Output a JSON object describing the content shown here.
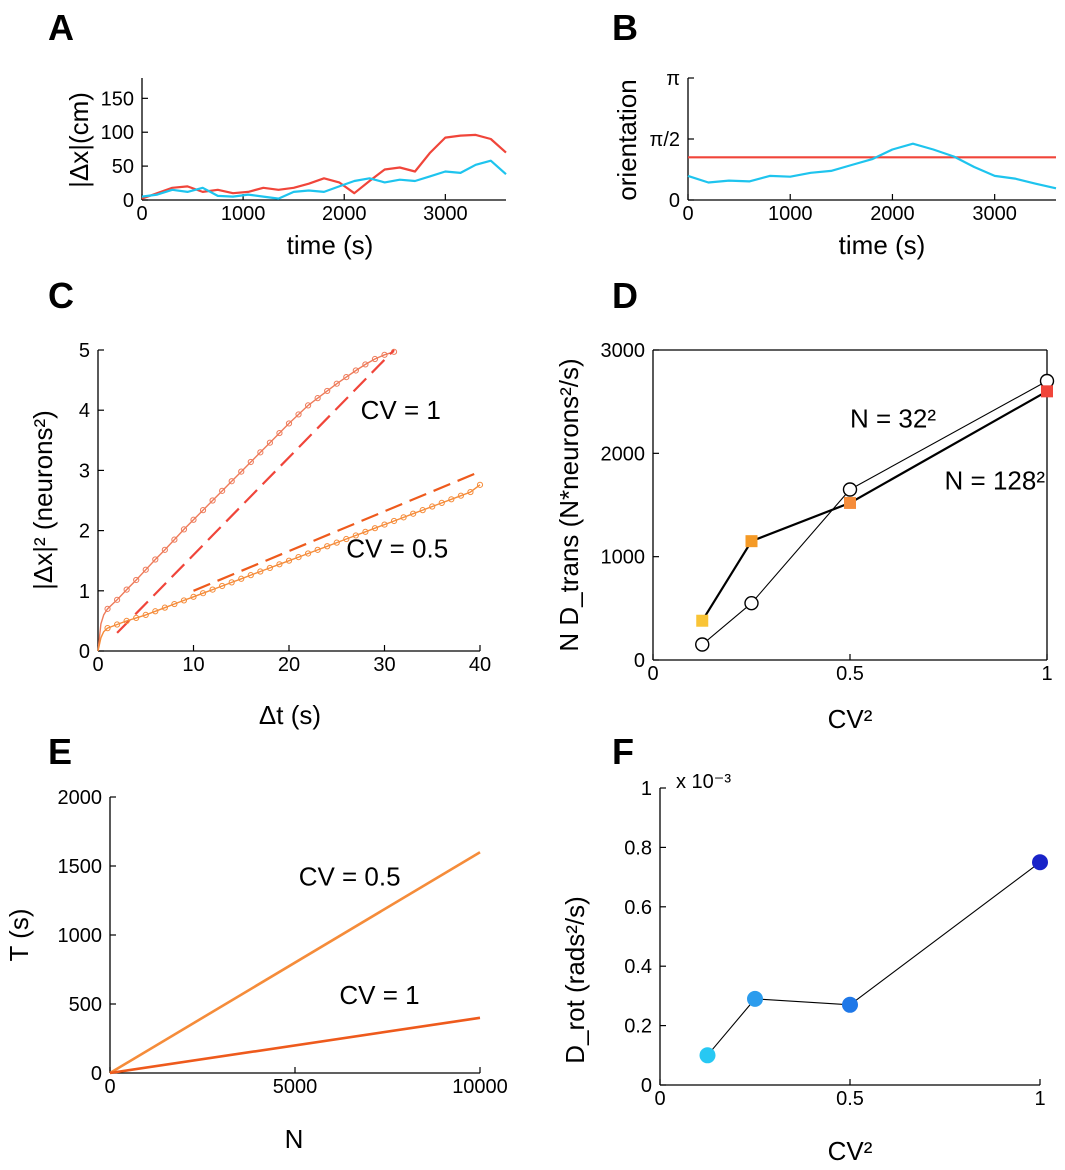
{
  "colors": {
    "red": "#f0453a",
    "cyan": "#1ec4ee",
    "orange": "#f58c3a",
    "orange_dark": "#ee5a1c",
    "salmon": "#ee7b5a",
    "yellow": "#f9c436",
    "amber": "#f59a26",
    "red_sq": "#f0453a",
    "blue_light": "#27c8f3",
    "blue_mid": "#2c9ced",
    "blue": "#1f78e8",
    "blue_dark": "#1923c8"
  },
  "chart_data": [
    {
      "id": "A",
      "panel_label": "A",
      "type": "line",
      "xlabel": "time (s)",
      "ylabel": "|Δx|(cm)",
      "xlim": [
        0,
        3600
      ],
      "ylim": [
        0,
        180
      ],
      "xticks": [
        0,
        1000,
        2000,
        3000
      ],
      "xtick_labels": [
        "0",
        "1000",
        "2000",
        "3000"
      ],
      "yticks": [
        0,
        50,
        100,
        150
      ],
      "ytick_labels": [
        "0",
        "50",
        "100",
        "150"
      ],
      "series": [
        {
          "name": "red trajectory",
          "color_key": "red",
          "x": [
            0,
            150,
            300,
            450,
            600,
            750,
            900,
            1050,
            1200,
            1350,
            1500,
            1650,
            1800,
            1950,
            2100,
            2250,
            2400,
            2550,
            2700,
            2850,
            3000,
            3150,
            3300,
            3450,
            3600
          ],
          "y": [
            2,
            10,
            18,
            20,
            12,
            15,
            10,
            12,
            18,
            15,
            18,
            24,
            32,
            26,
            10,
            28,
            45,
            48,
            42,
            70,
            92,
            95,
            96,
            90,
            70
          ]
        },
        {
          "name": "cyan trajectory",
          "color_key": "cyan",
          "x": [
            0,
            150,
            300,
            450,
            600,
            750,
            900,
            1050,
            1200,
            1350,
            1500,
            1650,
            1800,
            1950,
            2100,
            2250,
            2400,
            2550,
            2700,
            2850,
            3000,
            3150,
            3300,
            3450,
            3600
          ],
          "y": [
            5,
            8,
            15,
            12,
            18,
            6,
            5,
            8,
            5,
            2,
            12,
            14,
            12,
            20,
            28,
            32,
            26,
            30,
            28,
            35,
            42,
            40,
            52,
            58,
            38
          ]
        }
      ]
    },
    {
      "id": "B",
      "panel_label": "B",
      "type": "line",
      "xlabel": "time (s)",
      "ylabel": "orientation",
      "xlim": [
        0,
        3600
      ],
      "ylim": [
        0,
        3.1416
      ],
      "xticks": [
        0,
        1000,
        2000,
        3000
      ],
      "xtick_labels": [
        "0",
        "1000",
        "2000",
        "3000"
      ],
      "yticks": [
        0,
        1.5708,
        3.1416
      ],
      "ytick_labels": [
        "0",
        "π/2",
        "π"
      ],
      "series": [
        {
          "name": "constant orientation",
          "color_key": "red",
          "x": [
            0,
            3600
          ],
          "y": [
            1.1,
            1.1
          ]
        },
        {
          "name": "cyan orientation",
          "color_key": "cyan",
          "x": [
            0,
            200,
            400,
            600,
            800,
            1000,
            1200,
            1400,
            1600,
            1800,
            2000,
            2200,
            2400,
            2600,
            2800,
            3000,
            3200,
            3400,
            3600
          ],
          "y": [
            0.62,
            0.45,
            0.5,
            0.48,
            0.62,
            0.6,
            0.7,
            0.75,
            0.9,
            1.05,
            1.3,
            1.45,
            1.3,
            1.12,
            0.85,
            0.62,
            0.55,
            0.42,
            0.3
          ]
        }
      ]
    },
    {
      "id": "C",
      "panel_label": "C",
      "type": "line",
      "xlabel": "Δt (s)",
      "ylabel": "|Δx|² (neurons²)",
      "xlim": [
        0,
        40
      ],
      "ylim": [
        0,
        5
      ],
      "xticks": [
        0,
        10,
        20,
        30,
        40
      ],
      "xtick_labels": [
        "0",
        "10",
        "20",
        "30",
        "40"
      ],
      "yticks": [
        0,
        1,
        2,
        3,
        4,
        5
      ],
      "ytick_labels": [
        "0",
        "1",
        "2",
        "3",
        "4",
        "5"
      ],
      "annotations": [
        {
          "text": "CV = 1",
          "x": 27.5,
          "y": 3.85
        },
        {
          "text": "CV = 0.5",
          "x": 26,
          "y": 1.55
        }
      ],
      "series": [
        {
          "name": "CV = 1 data",
          "color_key": "salmon",
          "markers": "open-circle",
          "x": [
            0,
            0.3,
            0.6,
            1,
            2,
            3,
            4,
            5,
            6,
            7,
            8,
            9,
            10,
            11,
            12,
            13,
            14,
            15,
            16,
            17,
            18,
            19,
            20,
            21,
            22,
            23,
            24,
            25,
            26,
            27,
            28,
            29,
            30,
            31
          ],
          "y": [
            0,
            0.45,
            0.6,
            0.7,
            0.85,
            1.02,
            1.18,
            1.35,
            1.52,
            1.68,
            1.85,
            2.02,
            2.18,
            2.34,
            2.5,
            2.66,
            2.82,
            2.98,
            3.14,
            3.3,
            3.46,
            3.62,
            3.78,
            3.93,
            4.08,
            4.2,
            4.32,
            4.44,
            4.55,
            4.66,
            4.76,
            4.85,
            4.92,
            4.97
          ]
        },
        {
          "name": "CV = 1 fit",
          "color_key": "red",
          "dashed": true,
          "x": [
            2,
            31
          ],
          "y": [
            0.3,
            5.0
          ]
        },
        {
          "name": "CV = 0.5 data",
          "color_key": "orange",
          "markers": "open-circle",
          "x": [
            0,
            0.3,
            0.6,
            1,
            2,
            3,
            4,
            5,
            6,
            7,
            8,
            9,
            10,
            11,
            12,
            13,
            14,
            15,
            16,
            17,
            18,
            19,
            20,
            21,
            22,
            23,
            24,
            25,
            26,
            27,
            28,
            29,
            30,
            31,
            32,
            33,
            34,
            35,
            36,
            37,
            38,
            39,
            40
          ],
          "y": [
            0,
            0.22,
            0.32,
            0.38,
            0.44,
            0.5,
            0.55,
            0.6,
            0.66,
            0.72,
            0.78,
            0.84,
            0.9,
            0.96,
            1.02,
            1.08,
            1.14,
            1.2,
            1.26,
            1.32,
            1.38,
            1.44,
            1.5,
            1.56,
            1.62,
            1.68,
            1.74,
            1.8,
            1.86,
            1.92,
            1.98,
            2.04,
            2.1,
            2.16,
            2.22,
            2.28,
            2.34,
            2.4,
            2.46,
            2.52,
            2.58,
            2.64,
            2.76
          ]
        },
        {
          "name": "CV = 0.5 fit",
          "color_key": "orange_dark",
          "dashed": true,
          "x": [
            10,
            40
          ],
          "y": [
            1.0,
            2.98
          ]
        }
      ]
    },
    {
      "id": "D",
      "panel_label": "D",
      "type": "line",
      "xlabel": "CV²",
      "ylabel": "N D_trans (N*neurons²/s)",
      "xlim": [
        0,
        1
      ],
      "ylim": [
        0,
        3000
      ],
      "xticks": [
        0,
        0.5,
        1
      ],
      "xtick_labels": [
        "0",
        "0.5",
        "1"
      ],
      "yticks": [
        0,
        1000,
        2000,
        3000
      ],
      "ytick_labels": [
        "0",
        "1000",
        "2000",
        "3000"
      ],
      "annotations": [
        {
          "text": "N = 32²",
          "x": 0.5,
          "y": 2250
        },
        {
          "text": "N = 128²",
          "x": 0.74,
          "y": 1650
        }
      ],
      "series": [
        {
          "name": "N = 32²",
          "marker": "open-circle",
          "x": [
            0.125,
            0.25,
            0.5,
            1
          ],
          "y": [
            150,
            550,
            1650,
            2700
          ]
        },
        {
          "name": "N = 128²",
          "marker": "square",
          "x": [
            0.125,
            0.25,
            0.5,
            1
          ],
          "y": [
            380,
            1150,
            1520,
            2600
          ],
          "point_color_keys": [
            "yellow",
            "amber",
            "orange",
            "red_sq"
          ]
        }
      ]
    },
    {
      "id": "E",
      "panel_label": "E",
      "type": "line",
      "xlabel": "N",
      "ylabel": "T (s)",
      "xlim": [
        0,
        10000
      ],
      "ylim": [
        0,
        2000
      ],
      "xticks": [
        0,
        5000,
        10000
      ],
      "xtick_labels": [
        "0",
        "5000",
        "10000"
      ],
      "yticks": [
        0,
        500,
        1000,
        1500,
        2000
      ],
      "ytick_labels": [
        "0",
        "500",
        "1000",
        "1500",
        "2000"
      ],
      "annotations": [
        {
          "text": "CV = 0.5",
          "x": 5100,
          "y": 1360
        },
        {
          "text": "CV = 1",
          "x": 6200,
          "y": 500
        }
      ],
      "series": [
        {
          "name": "CV = 0.5",
          "color_key": "orange",
          "x": [
            0,
            10000
          ],
          "y": [
            0,
            1600
          ]
        },
        {
          "name": "CV = 1",
          "color_key": "orange_dark",
          "x": [
            0,
            10000
          ],
          "y": [
            0,
            400
          ]
        }
      ]
    },
    {
      "id": "F",
      "panel_label": "F",
      "type": "line",
      "xlabel": "CV²",
      "ylabel": "D_rot (rads²/s)",
      "multiplier": "x 10⁻³",
      "xlim": [
        0,
        1
      ],
      "ylim": [
        0,
        1
      ],
      "xticks": [
        0,
        0.5,
        1
      ],
      "xtick_labels": [
        "0",
        "0.5",
        "1"
      ],
      "yticks": [
        0,
        0.2,
        0.4,
        0.6,
        0.8,
        1
      ],
      "ytick_labels": [
        "0",
        "0.2",
        "0.4",
        "0.6",
        "0.8",
        "1"
      ],
      "series": [
        {
          "name": "D_rot",
          "marker": "filled-circle",
          "x": [
            0.125,
            0.25,
            0.5,
            1
          ],
          "y": [
            0.1,
            0.29,
            0.27,
            0.75
          ],
          "point_color_keys": [
            "blue_light",
            "blue_mid",
            "blue",
            "blue_dark"
          ]
        }
      ]
    }
  ]
}
